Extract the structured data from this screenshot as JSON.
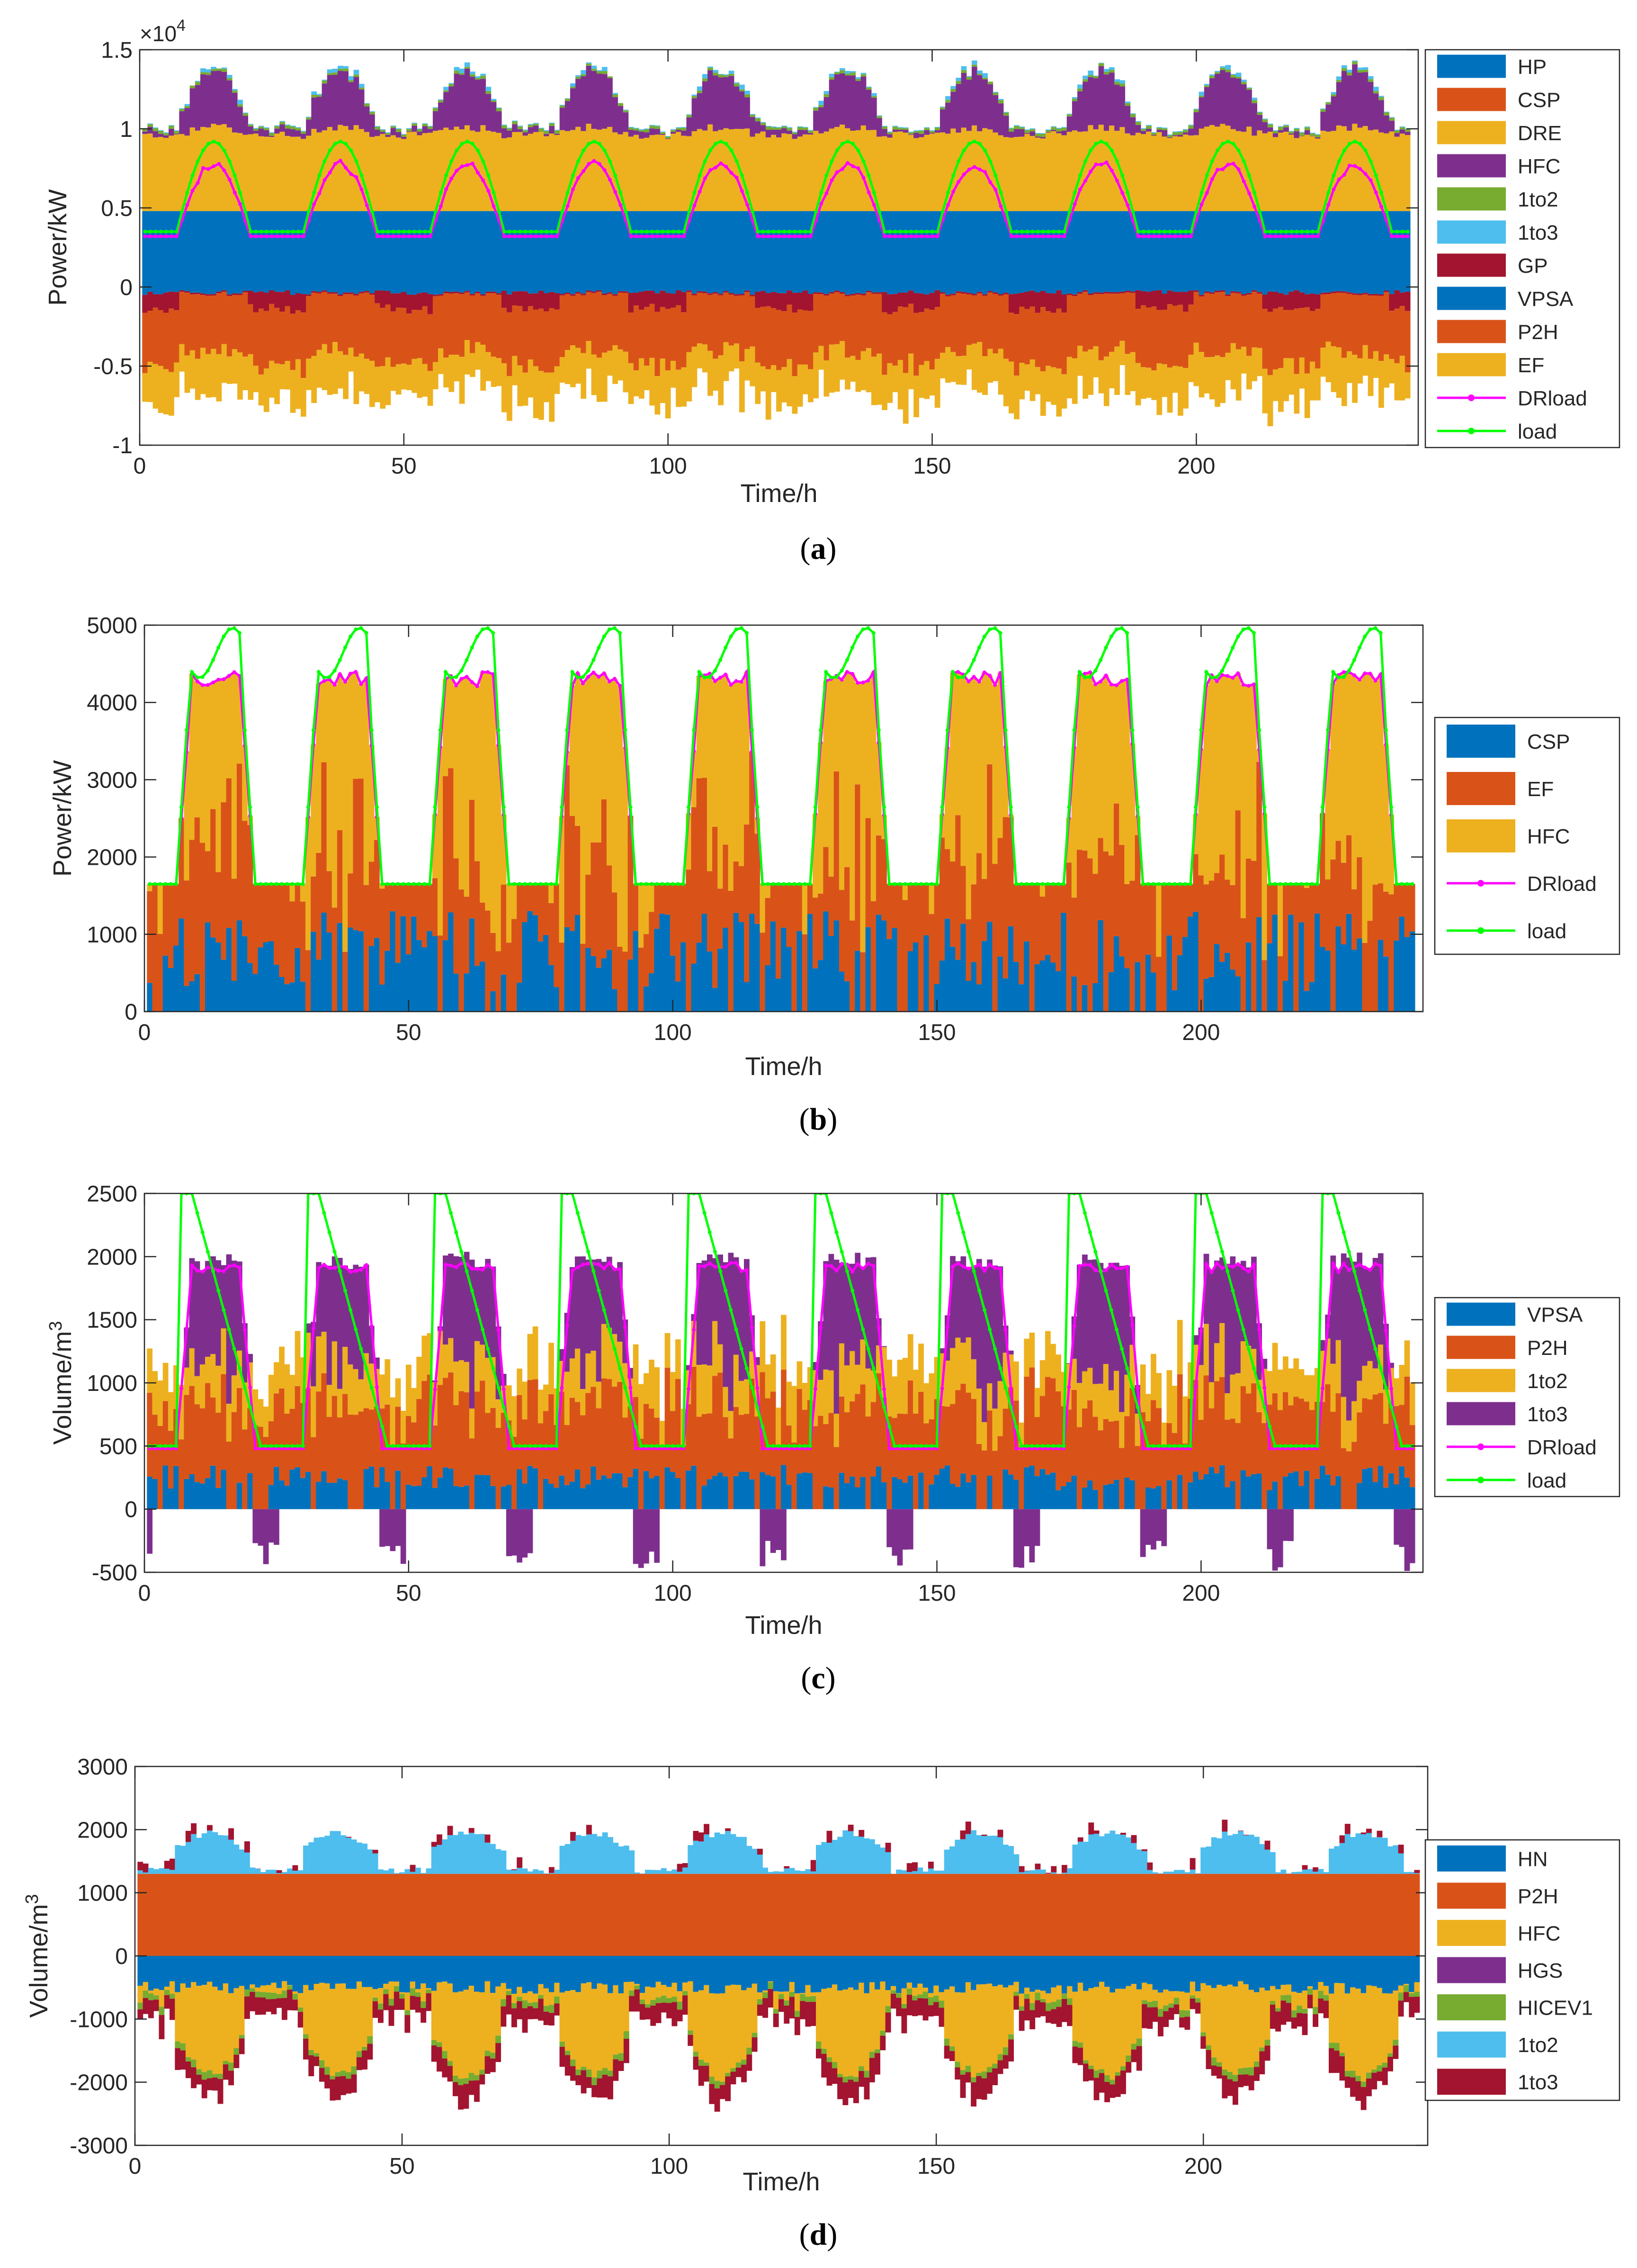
{
  "figure": {
    "captions": [
      "(a)",
      "(b)",
      "(c)",
      "(d)"
    ]
  },
  "chart_data": [
    {
      "id": "a",
      "type": "stacked-bar-with-lines",
      "caption": "(a)",
      "xlabel": "Time/h",
      "ylabel": "Power/kW",
      "exponent_label": "×10",
      "exponent_power": "4",
      "xlim": [
        0,
        242
      ],
      "ylim": [
        -1,
        1.5
      ],
      "xticks": [
        0,
        50,
        100,
        150,
        200
      ],
      "yticks": [
        -1,
        -0.5,
        0,
        0.5,
        1,
        1.5
      ],
      "ytick_labels": [
        "-1",
        "-0.5",
        "0",
        "0.5",
        "1",
        "1.5"
      ],
      "legend_position": "outside-right",
      "legend": [
        "HP",
        "CSP",
        "DRE",
        "HFC",
        "1to2",
        "1to3",
        "GP",
        "VPSA",
        "P2H",
        "EF",
        "DRload",
        "load"
      ],
      "colors": {
        "HP": "#0072bd",
        "CSP": "#d95319",
        "DRE": "#edb120",
        "HFC": "#7e2f8e",
        "1to2": "#77ac30",
        "1to3": "#4dbeee",
        "GP": "#a2142f",
        "VPSA": "#0072bd",
        "P2H": "#d95319",
        "EF": "#edb120",
        "DRload": "#ff00ff",
        "load": "#00ff00"
      },
      "positive_series_typical": {
        "HP": 0.48,
        "DRE_day": 0.5,
        "DRE_night": 0.48,
        "HFC_day_peak": 0.3,
        "1to2": 0.02,
        "1to3": 0.03
      },
      "negative_series_typical": {
        "VPSA": -0.02,
        "GP": -0.12,
        "P2H": -0.4,
        "EF": -0.2
      },
      "load_profile": {
        "min": 0.35,
        "max": 0.92,
        "peak_hour_of_day": 14
      },
      "DRload_profile": {
        "min": 0.32,
        "max": 0.8
      }
    },
    {
      "id": "b",
      "type": "stacked-bar-with-lines",
      "caption": "(b)",
      "xlabel": "Time/h",
      "ylabel": "Power/kW",
      "xlim": [
        0,
        242
      ],
      "ylim": [
        0,
        5000
      ],
      "xticks": [
        0,
        50,
        100,
        150,
        200
      ],
      "yticks": [
        0,
        1000,
        2000,
        3000,
        4000,
        5000
      ],
      "ytick_labels": [
        "0",
        "1000",
        "2000",
        "3000",
        "4000",
        "5000"
      ],
      "legend_position": "outside-right",
      "legend": [
        "CSP",
        "EF",
        "HFC",
        "DRload",
        "load"
      ],
      "colors": {
        "CSP": "#0072bd",
        "EF": "#d95319",
        "HFC": "#edb120",
        "DRload": "#ff00ff",
        "load": "#00ff00"
      },
      "load_profile": {
        "min": 1650,
        "max": 4900,
        "shoulder": 4400
      },
      "DRload_profile": {
        "min": 1650,
        "max": 4400,
        "shoulder": 3950
      },
      "CSP_typical_max": 1300,
      "EF_typical_max": 2200
    },
    {
      "id": "c",
      "type": "stacked-bar-with-lines",
      "caption": "(c)",
      "xlabel": "Time/h",
      "ylabel": "Volume/m",
      "ylabel_superscript": "3",
      "xlim": [
        0,
        242
      ],
      "ylim": [
        -500,
        2500
      ],
      "xticks": [
        0,
        50,
        100,
        150,
        200
      ],
      "yticks": [
        -500,
        0,
        500,
        1000,
        1500,
        2000,
        2500
      ],
      "ytick_labels": [
        "-500",
        "0",
        "500",
        "1000",
        "1500",
        "2000",
        "2500"
      ],
      "legend_position": "outside-right",
      "legend": [
        "VPSA",
        "P2H",
        "1to2",
        "1to3",
        "DRload",
        "load"
      ],
      "colors": {
        "VPSA": "#0072bd",
        "P2H": "#d95319",
        "1to2": "#edb120",
        "1to3": "#7e2f8e",
        "DRload": "#ff00ff",
        "load": "#00ff00"
      },
      "load_profile": {
        "min": 500,
        "max": 2500
      },
      "DRload_profile": {
        "min": 480,
        "max": 1950
      },
      "negative_1to3_min": -500
    },
    {
      "id": "d",
      "type": "stacked-bar",
      "caption": "(d)",
      "xlabel": "Time/h",
      "ylabel": "Volume/m",
      "ylabel_superscript": "3",
      "xlim": [
        0,
        242
      ],
      "ylim": [
        -3000,
        3000
      ],
      "xticks": [
        0,
        50,
        100,
        150,
        200
      ],
      "yticks": [
        -3000,
        -2000,
        -1000,
        0,
        1000,
        2000,
        3000
      ],
      "ytick_labels": [
        "-3000",
        "-2000",
        "-1000",
        "0",
        "1000",
        "2000",
        "3000"
      ],
      "legend_position": "outside-right",
      "legend": [
        "HN",
        "P2H",
        "HFC",
        "HGS",
        "HICEV1",
        "1to2",
        "1to3"
      ],
      "colors": {
        "HN": "#0072bd",
        "P2H": "#d95319",
        "HFC": "#edb120",
        "HGS": "#7e2f8e",
        "HICEV1": "#77ac30",
        "1to2": "#4dbeee",
        "1to3": "#a2142f"
      },
      "P2H_constant": 1300,
      "HN_typical": -500,
      "HFC_day_min": -2000
    }
  ]
}
